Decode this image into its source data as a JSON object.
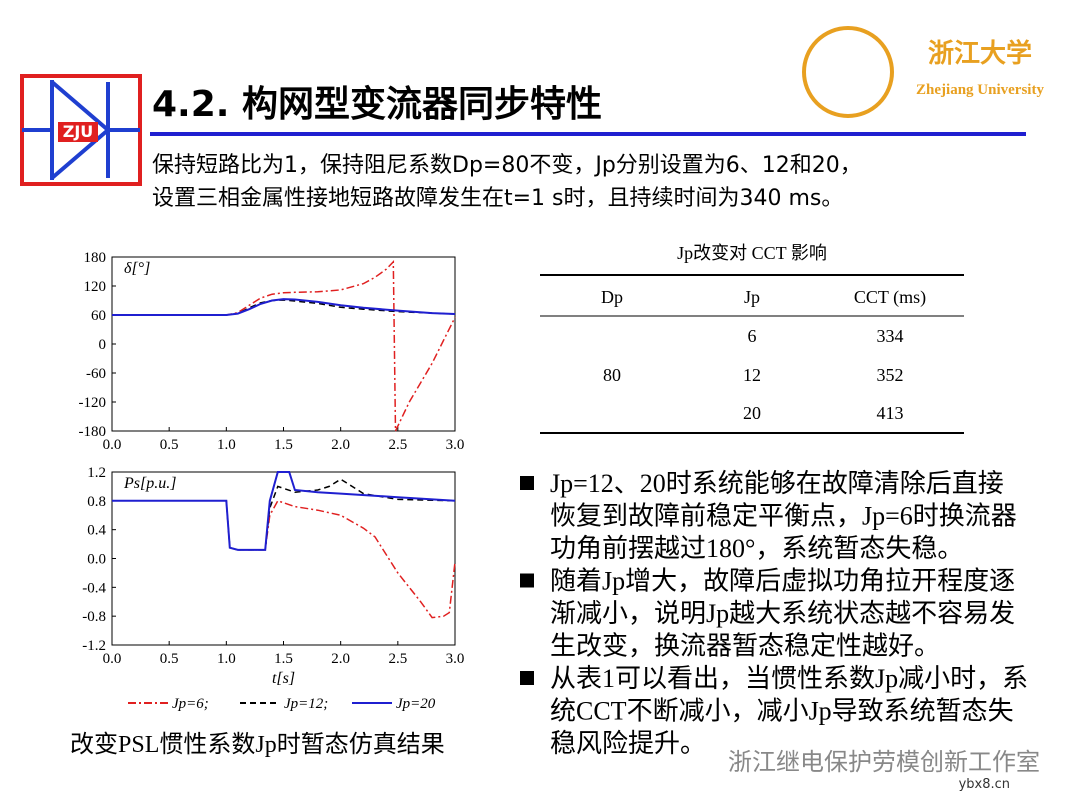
{
  "header": {
    "title": "4.2. 构网型变流器同步特性",
    "logo_text": "ZJU",
    "university_cn": "浙江大学",
    "university_en": "Zhejiang University"
  },
  "intro": [
    "保持短路比为1，保持阻尼系数Dp=80不变，Jp分别设置为6、12和20，",
    "设置三相金属性接地短路故障发生在t=1 s时，且持续时间为340 ms。"
  ],
  "charts": [
    {
      "type": "line",
      "y_label": "δ[°]",
      "xlim": [
        0,
        3
      ],
      "ylim": [
        -180,
        180
      ],
      "xticks": [
        {
          "value": 0,
          "label": "0.0"
        },
        0.5,
        {
          "value": 1,
          "label": "1.0"
        },
        1.5,
        {
          "value": 2,
          "label": "2.0"
        },
        2.5,
        {
          "value": 3,
          "label": "3.0"
        }
      ],
      "yticks": [
        180,
        120,
        60,
        0,
        -60,
        -120,
        -180
      ],
      "series": [
        {
          "name": "Jp=6;",
          "color": "#e02020",
          "style": "dashdot",
          "x": [
            0,
            0.5,
            1.0,
            1.1,
            1.2,
            1.3,
            1.4,
            1.5,
            1.6,
            1.8,
            2.0,
            2.2,
            2.3,
            2.4,
            2.46,
            2.48,
            2.6,
            2.8,
            3.0
          ],
          "values": [
            60,
            60,
            60,
            65,
            80,
            95,
            103,
            106,
            107,
            108,
            112,
            125,
            138,
            155,
            170,
            -180,
            -120,
            -40,
            55
          ]
        },
        {
          "name": "Jp=12;",
          "color": "#000000",
          "style": "dash",
          "x": [
            0,
            0.5,
            1.0,
            1.1,
            1.2,
            1.3,
            1.4,
            1.5,
            1.6,
            1.8,
            2.0,
            2.2,
            2.5,
            2.8,
            3.0
          ],
          "values": [
            60,
            60,
            60,
            63,
            75,
            85,
            90,
            91,
            89,
            84,
            76,
            72,
            67,
            64,
            62
          ]
        },
        {
          "name": "Jp=20",
          "color": "#1f1fd0",
          "style": "solid",
          "x": [
            0,
            0.5,
            1.0,
            1.1,
            1.2,
            1.3,
            1.4,
            1.5,
            1.6,
            1.8,
            2.0,
            2.2,
            2.5,
            2.8,
            3.0
          ],
          "values": [
            60,
            60,
            60,
            63,
            72,
            83,
            90,
            93,
            92,
            87,
            80,
            75,
            69,
            64,
            62
          ]
        }
      ]
    },
    {
      "type": "line",
      "y_label": "Ps[p.u.]",
      "x_label": "t[s]",
      "xlim": [
        0,
        3
      ],
      "ylim": [
        -1.2,
        1.2
      ],
      "xticks": [
        {
          "value": 0,
          "label": "0.0"
        },
        0.5,
        {
          "value": 1,
          "label": "1.0"
        },
        1.5,
        {
          "value": 2,
          "label": "2.0"
        },
        2.5,
        {
          "value": 3,
          "label": "3.0"
        }
      ],
      "yticks": [
        1.2,
        0.8,
        0.4,
        {
          "value": 0,
          "label": "0.0"
        },
        -0.4,
        -0.8,
        -1.2
      ],
      "series": [
        {
          "name": "Jp=6;",
          "color": "#e02020",
          "style": "dashdot",
          "x": [
            0,
            0.5,
            1.0,
            1.03,
            1.1,
            1.3,
            1.34,
            1.38,
            1.45,
            1.6,
            1.8,
            2.0,
            2.2,
            2.3,
            2.5,
            2.7,
            2.8,
            2.9,
            2.95,
            3.0
          ],
          "values": [
            0.8,
            0.8,
            0.8,
            0.15,
            0.12,
            0.12,
            0.12,
            0.6,
            0.8,
            0.72,
            0.67,
            0.6,
            0.42,
            0.3,
            -0.2,
            -0.6,
            -0.82,
            -0.8,
            -0.75,
            -0.05
          ]
        },
        {
          "name": "Jp=12;",
          "color": "#000000",
          "style": "dash",
          "x": [
            0,
            0.5,
            1.0,
            1.03,
            1.1,
            1.3,
            1.34,
            1.38,
            1.45,
            1.6,
            1.8,
            1.9,
            2.0,
            2.1,
            2.2,
            2.5,
            3.0
          ],
          "values": [
            0.8,
            0.8,
            0.8,
            0.15,
            0.12,
            0.12,
            0.12,
            0.7,
            1.0,
            0.92,
            0.95,
            1.0,
            1.1,
            1.0,
            0.9,
            0.82,
            0.8
          ]
        },
        {
          "name": "Jp=20",
          "color": "#1f1fd0",
          "style": "solid",
          "x": [
            0,
            0.5,
            1.0,
            1.03,
            1.1,
            1.3,
            1.34,
            1.38,
            1.45,
            1.55,
            1.6,
            1.8,
            2.0,
            2.5,
            3.0
          ],
          "values": [
            0.8,
            0.8,
            0.8,
            0.15,
            0.12,
            0.12,
            0.12,
            0.8,
            1.2,
            1.2,
            0.95,
            0.92,
            0.9,
            0.85,
            0.8
          ]
        }
      ]
    }
  ],
  "caption": "改变PSL惯性系数Jp时暂态仿真结果",
  "table": {
    "title": "Jp改变对 CCT 影响",
    "header": [
      "Dp",
      "Jp",
      "CCT (ms)"
    ],
    "dp": 80,
    "rows": [
      [
        6,
        334
      ],
      [
        12,
        352
      ],
      [
        20,
        413
      ]
    ]
  },
  "bullets": [
    [
      "Jp=12、20时系统能够在故障清除后直接",
      "恢复到故障前稳定平衡点，Jp=6时换流器",
      "功角前摆越过180°，系统暂态失稳。"
    ],
    [
      "随着Jp增大，故障后虚拟功角拉开程度逐",
      "渐减小，说明Jp越大系统状态越不容易发",
      "生改变，换流器暂态稳定性越好。"
    ],
    [
      "从表1可以看出，当惯性系数Jp减小时，系",
      "统CCT不断减小，减小Jp导致系统暂态失",
      "稳风险提升。"
    ]
  ],
  "watermark": "浙江继电保护劳模创新工作室",
  "site": "ybx8.cn"
}
